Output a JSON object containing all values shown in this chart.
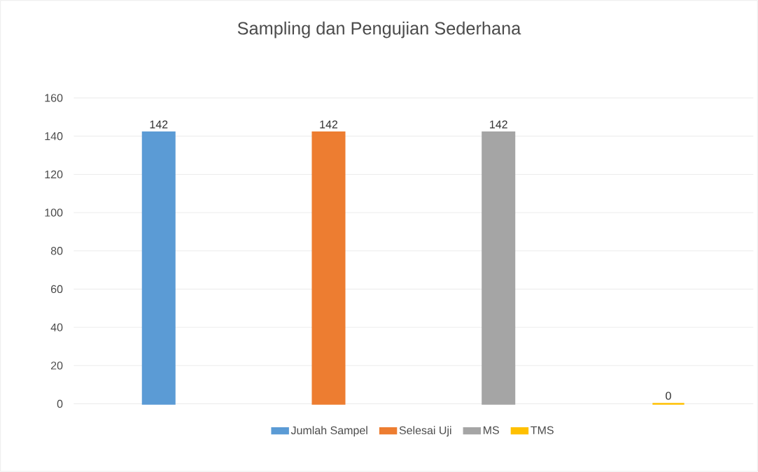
{
  "chart_data": {
    "type": "bar",
    "title": "Sampling dan Pengujian Sederhana",
    "categories": [
      null,
      null,
      null,
      null
    ],
    "series": [
      {
        "name": "Jumlah Sampel",
        "color": "#5b9bd5",
        "values": [
          142,
          null,
          null,
          null
        ]
      },
      {
        "name": "Selesai Uji",
        "color": "#ed7d31",
        "values": [
          null,
          142,
          null,
          null
        ]
      },
      {
        "name": "MS",
        "color": "#a5a5a5",
        "values": [
          null,
          null,
          142,
          null
        ]
      },
      {
        "name": "TMS",
        "color": "#ffc000",
        "values": [
          null,
          null,
          null,
          0
        ]
      }
    ],
    "ylim": [
      0,
      160
    ],
    "yticks": [
      0,
      20,
      40,
      60,
      80,
      100,
      120,
      140,
      160
    ],
    "grid": "y",
    "legend": "bottom",
    "data_labels": true
  }
}
